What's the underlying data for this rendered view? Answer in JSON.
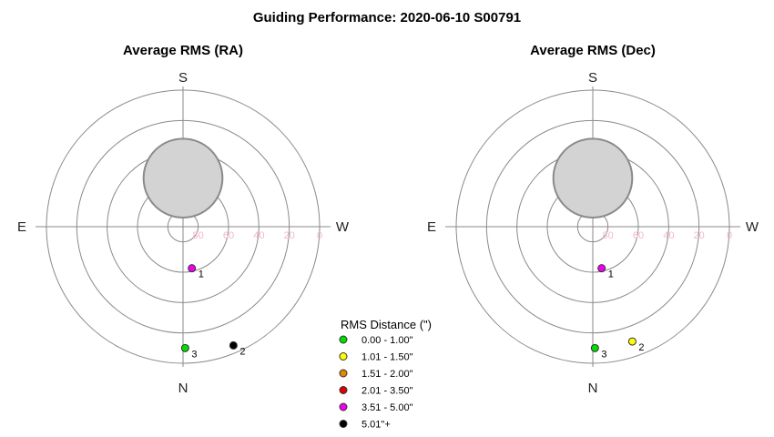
{
  "title": "Guiding Performance: 2020-06-10 S00791",
  "compass": {
    "north": "N",
    "south": "S",
    "east": "E",
    "west": "W"
  },
  "legend": {
    "title": "RMS Distance (\")",
    "items": [
      {
        "label": "0.00 - 1.00\"",
        "color": "#00dd00"
      },
      {
        "label": "1.01 - 1.50\"",
        "color": "#ffff00"
      },
      {
        "label": "1.51 - 2.00\"",
        "color": "#e08a00"
      },
      {
        "label": "2.01 - 3.50\"",
        "color": "#dd0000"
      },
      {
        "label": "3.51 - 5.00\"",
        "color": "#ee00ee"
      },
      {
        "label": "5.01\"+",
        "color": "#000000"
      }
    ]
  },
  "chart_data": [
    {
      "type": "scatter",
      "subtitle": "Average RMS (RA)",
      "radial_axis": {
        "ticks": [
          80,
          60,
          40,
          20,
          0
        ],
        "range": [
          90,
          0
        ]
      },
      "points": [
        {
          "label": "1",
          "azimuth_deg": 348,
          "altitude_deg": 62,
          "color": "#ee00ee"
        },
        {
          "label": "2",
          "azimuth_deg": 337,
          "altitude_deg": 5,
          "color": "#000000"
        },
        {
          "label": "3",
          "azimuth_deg": 359,
          "altitude_deg": 10,
          "color": "#00dd00"
        }
      ],
      "moon": {
        "azimuth_deg": 180,
        "altitude_deg": 58,
        "radius_deg": 26
      }
    },
    {
      "type": "scatter",
      "subtitle": "Average RMS (Dec)",
      "radial_axis": {
        "ticks": [
          80,
          60,
          40,
          20,
          0
        ],
        "range": [
          90,
          0
        ]
      },
      "points": [
        {
          "label": "1",
          "azimuth_deg": 348,
          "altitude_deg": 62,
          "color": "#ee00ee"
        },
        {
          "label": "2",
          "azimuth_deg": 341,
          "altitude_deg": 10,
          "color": "#ffff00"
        },
        {
          "label": "3",
          "azimuth_deg": 359,
          "altitude_deg": 10,
          "color": "#00dd00"
        }
      ],
      "moon": {
        "azimuth_deg": 180,
        "altitude_deg": 58,
        "radius_deg": 26
      }
    }
  ]
}
